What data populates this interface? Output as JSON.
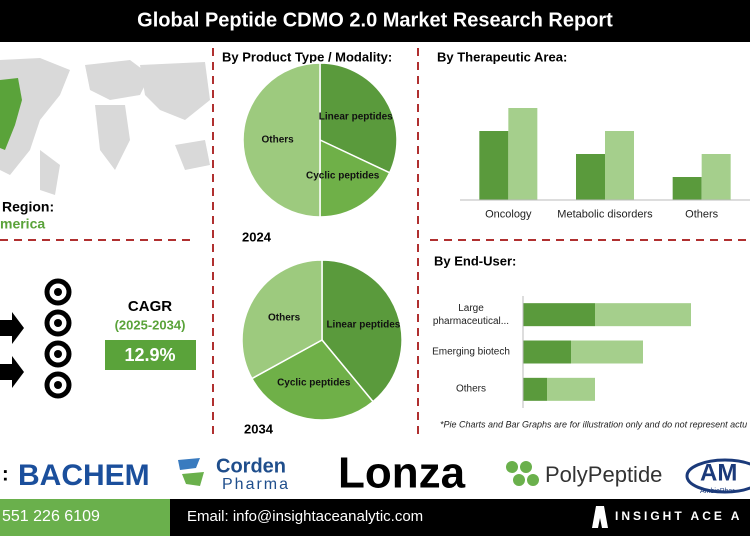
{
  "header": {
    "title": "Global Peptide CDMO 2.0 Market Research Report"
  },
  "region": {
    "label": "Region:",
    "value": "merica"
  },
  "cagr": {
    "label": "CAGR",
    "period": "(2025-2034)",
    "value": "12.9%"
  },
  "chart_data": [
    {
      "type": "pie",
      "title": "By Product Type / Modality:",
      "label": "2024",
      "categories": [
        "Linear peptides",
        "Cyclic peptides",
        "Others"
      ],
      "values": [
        32,
        18,
        50
      ],
      "colors": [
        "#5a9a3c",
        "#6fb048",
        "#9dca7e"
      ]
    },
    {
      "type": "pie",
      "label": "2034",
      "categories": [
        "Linear peptides",
        "Cyclic peptides",
        "Others"
      ],
      "values": [
        39,
        28,
        33
      ],
      "colors": [
        "#5a9a3c",
        "#6fb048",
        "#9dca7e"
      ]
    },
    {
      "type": "bar",
      "title": "By Therapeutic Area:",
      "categories": [
        "Oncology",
        "Metabolic disorders",
        "Others"
      ],
      "series": [
        {
          "color": "#5a9a3c",
          "values": [
            3,
            2,
            1
          ]
        },
        {
          "color": "#a5cf8c",
          "values": [
            4,
            3,
            2
          ]
        }
      ],
      "ylim": [
        0,
        4
      ]
    },
    {
      "type": "hbar",
      "title": "By End-User:",
      "categories": [
        "Large pharmaceutical...",
        "Emerging biotech",
        "Others"
      ],
      "series": [
        {
          "color": "#5a9a3c",
          "values": [
            3,
            2,
            1
          ]
        },
        {
          "color": "#a5cf8c",
          "values": [
            4,
            3,
            2
          ]
        }
      ],
      "xlim": [
        0,
        9
      ]
    }
  ],
  "note": "*Pie Charts and Bar Graphs are for illustration only and do not represent actu",
  "key_players": {
    "label": ":",
    "logos": [
      "BACHEM",
      "Corden",
      "Pharma",
      "Lonza",
      "PolyPeptide",
      "AM",
      "AmbioPhar"
    ]
  },
  "contact": {
    "phone": "551 226 6109",
    "email": "Email: info@insightaceanalytic.com"
  },
  "brand": "INSIGHT ACE A"
}
